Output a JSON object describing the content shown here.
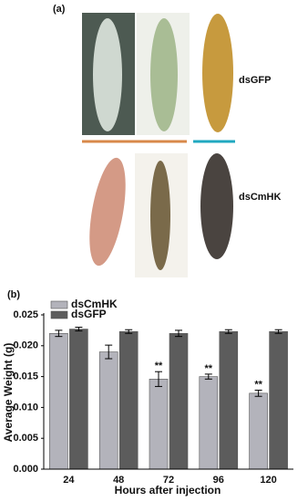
{
  "panel_labels": [
    "(a)",
    "(b)"
  ],
  "photo_labels": [
    "dsGFP",
    "dsCmHK"
  ],
  "chart_data": {
    "type": "bar",
    "x_label": "Hours after injection",
    "y_label": "Average Weight (g)",
    "categories": [
      "24",
      "48",
      "72",
      "96",
      "120"
    ],
    "series": [
      {
        "name": "dsCmHK",
        "color": "#b3b3bb",
        "values": [
          0.022,
          0.019,
          0.0146,
          0.015,
          0.0123
        ],
        "errors": [
          0.0005,
          0.0011,
          0.0012,
          0.0004,
          0.0005
        ],
        "significance": [
          null,
          null,
          "**",
          "**",
          "**"
        ]
      },
      {
        "name": "dsGFP",
        "color": "#5c5c5c",
        "values": [
          0.0227,
          0.0223,
          0.022,
          0.0223,
          0.0223
        ],
        "errors": [
          0.0003,
          0.0003,
          0.0005,
          0.0003,
          0.0003
        ]
      }
    ],
    "ylim": [
      0,
      0.025
    ],
    "yticks": [
      {
        "value": 0,
        "label": "0.000"
      },
      0.005,
      {
        "value": 0.01,
        "label": "0.010"
      },
      0.015,
      {
        "value": 0.02,
        "label": "0.020"
      },
      0.025
    ],
    "legend": "top-left"
  }
}
